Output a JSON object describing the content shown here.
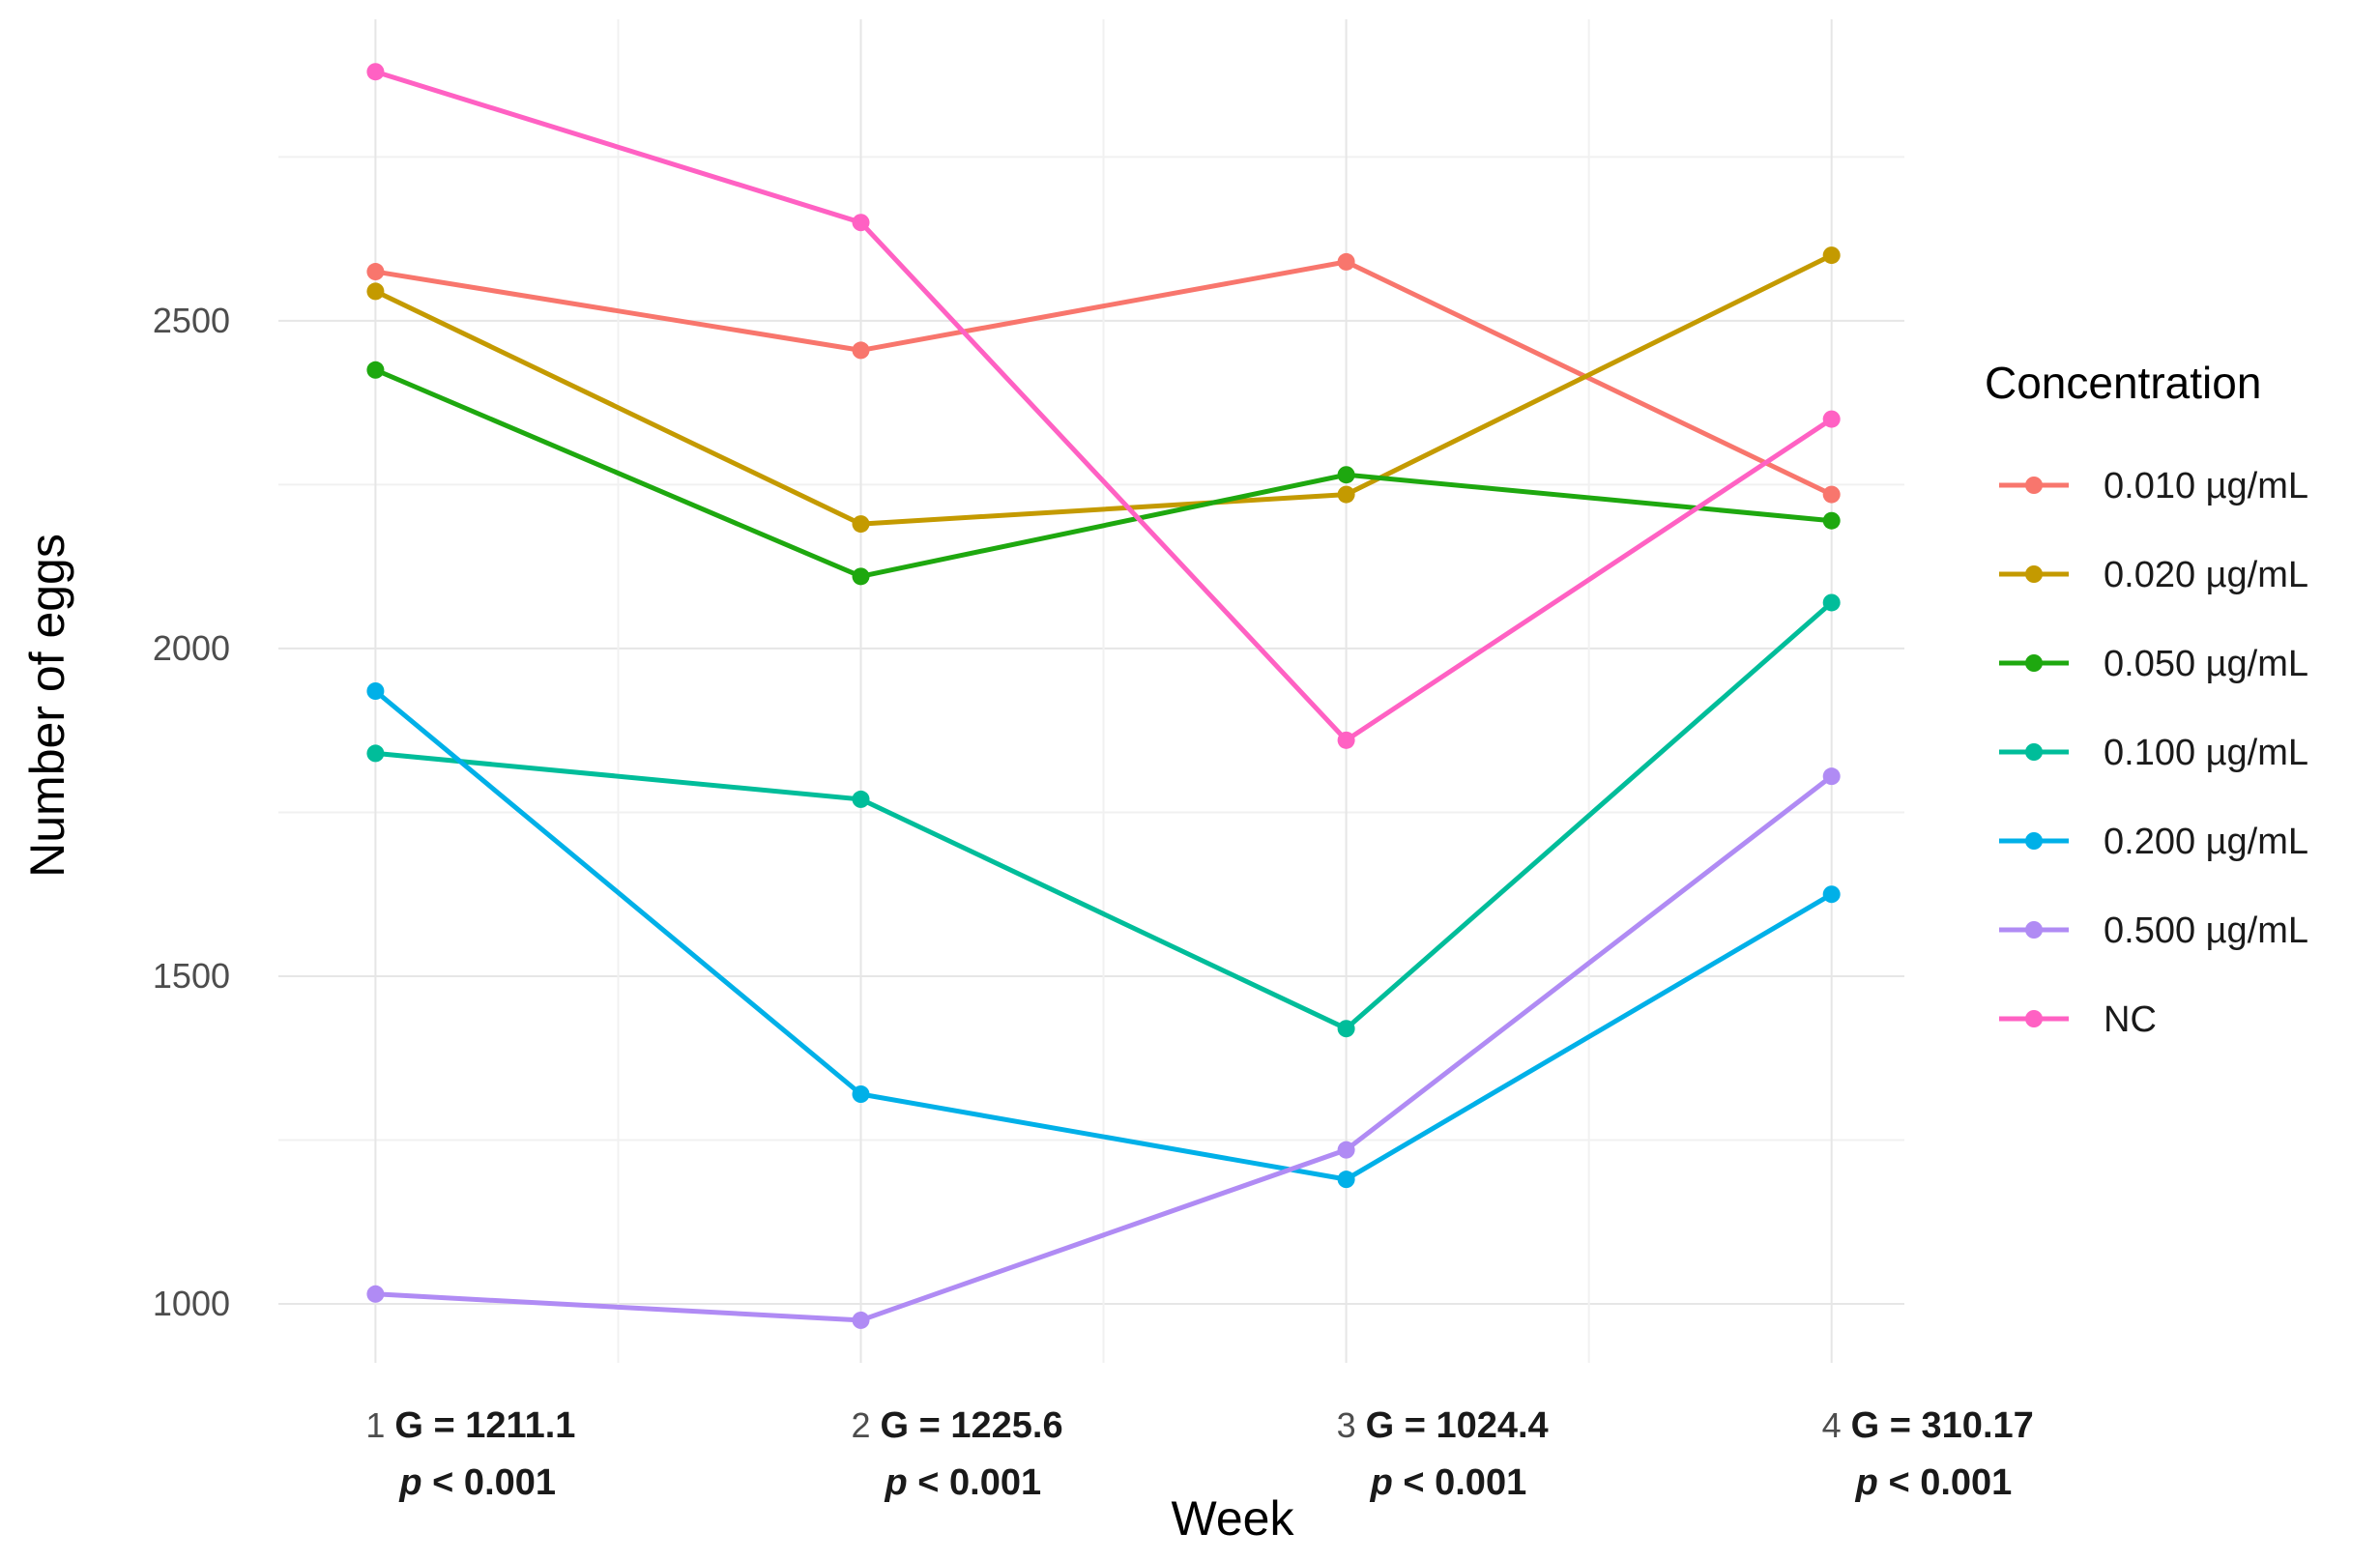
{
  "chart_data": {
    "type": "line",
    "xlabel": "Week",
    "ylabel": "Number of eggs",
    "x": [
      1,
      2,
      3,
      4
    ],
    "x_tick_labels": [
      "1",
      "2",
      "3",
      "4"
    ],
    "y_ticks": [
      1000,
      1500,
      2000,
      2500
    ],
    "y_tick_labels": [
      "1000",
      "1500",
      "2000",
      "2500"
    ],
    "ylim": [
      910,
      2960
    ],
    "xlim": [
      0.8,
      4.15
    ],
    "grid": true,
    "week_stats": [
      {
        "g": "G = 1211.1",
        "p": "p",
        "p_rest": " < 0.001"
      },
      {
        "g": "G = 1225.6",
        "p": "p",
        "p_rest": " < 0.001"
      },
      {
        "g": "G = 1024.4",
        "p": "p",
        "p_rest": " < 0.001"
      },
      {
        "g": "G = 310.17",
        "p": "p",
        "p_rest": " < 0.001"
      }
    ],
    "legend": {
      "title": "Concentration",
      "position": "right"
    },
    "series": [
      {
        "name": "0.010 µg/mL",
        "color": "#F8766D",
        "values": [
          2575,
          2455,
          2590,
          2235
        ]
      },
      {
        "name": "0.020 µg/mL",
        "color": "#C49A00",
        "values": [
          2545,
          2190,
          2235,
          2600
        ]
      },
      {
        "name": "0.050 µg/mL",
        "color": "#1EA80F",
        "values": [
          2425,
          2110,
          2265,
          2195
        ]
      },
      {
        "name": "0.100 µg/mL",
        "color": "#00BD9A",
        "values": [
          1840,
          1770,
          1420,
          2070
        ]
      },
      {
        "name": "0.200 µg/mL",
        "color": "#00B0E8",
        "values": [
          1935,
          1320,
          1190,
          1625
        ]
      },
      {
        "name": "0.500 µg/mL",
        "color": "#B08BF4",
        "values": [
          1015,
          975,
          1235,
          1805
        ]
      },
      {
        "name": "NC",
        "color": "#FF61C3",
        "values": [
          2880,
          2650,
          1860,
          2350
        ]
      }
    ]
  }
}
